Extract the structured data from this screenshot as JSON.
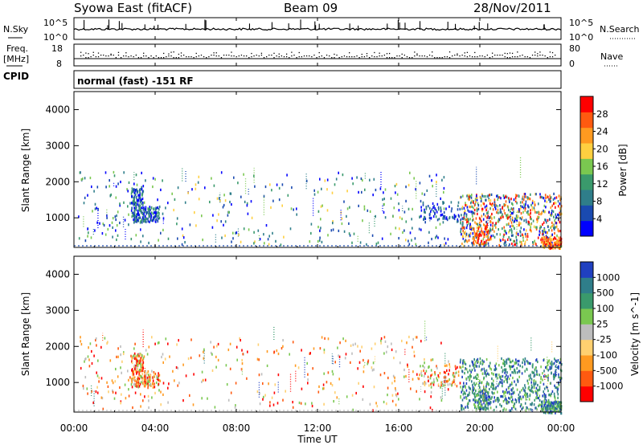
{
  "header": {
    "station": "Syowa East (fitACF)",
    "beam": "Beam 09",
    "date": "28/Nov/2011"
  },
  "side_labels": {
    "nsky": "N.Sky",
    "freq_line1": "Freq.",
    "freq_line2": "[MHz]",
    "cpid": "CPID",
    "nsearch": "N.Search",
    "nave": "Nave"
  },
  "cpid_text": "normal (fast) -151 RF",
  "colors": {
    "power_scale": [
      "#0000ff",
      "#1a4ab0",
      "#2f7e8a",
      "#3a9a6c",
      "#7ac850",
      "#ffd040",
      "#ff9a20",
      "#ff5a10",
      "#ff0000"
    ],
    "velocity_scale": [
      "#ff0000",
      "#ff5a10",
      "#ff9a20",
      "#ffd070",
      "#bdbdbd",
      "#7ac850",
      "#3a9a6c",
      "#2f7e8a",
      "#2040c0"
    ]
  },
  "chart_data": [
    {
      "type": "line",
      "name": "nsky-nsearch",
      "ylabel_left": "N.Sky",
      "ylabel_right": "N.Search",
      "left_ticks": [
        "10^5",
        "10^0"
      ],
      "right_ticks": [
        "10^5",
        "10^0"
      ]
    },
    {
      "type": "scatter",
      "name": "freq-nave",
      "ylabel_left": "Freq. [MHz]",
      "ylabel_right": "Nave",
      "left_ticks": [
        "18",
        "8"
      ],
      "right_ticks": [
        "80",
        "0"
      ],
      "ylim_left": [
        8,
        18
      ],
      "ylim_right": [
        0,
        80
      ]
    },
    {
      "type": "heatmap",
      "name": "power",
      "ylabel": "Slant Range [km]",
      "yticks": [
        "1000",
        "2000",
        "3000",
        "4000"
      ],
      "ylim": [
        180,
        4500
      ],
      "colorbar_label": "Power [dB]",
      "colorbar_ticks": [
        "28",
        "24",
        "20",
        "16",
        "12",
        "8",
        "4"
      ]
    },
    {
      "type": "heatmap",
      "name": "velocity",
      "ylabel": "Slant Range [km]",
      "yticks": [
        "1000",
        "2000",
        "3000",
        "4000"
      ],
      "ylim": [
        180,
        4500
      ],
      "colorbar_label": "Velocity [m s^-1]",
      "colorbar_ticks": [
        "1000",
        "500",
        "100",
        "25",
        "-25",
        "-100",
        "-500",
        "-1000"
      ]
    }
  ],
  "xaxis": {
    "xlabel": "Time UT",
    "ticks": [
      "00:00",
      "04:00",
      "08:00",
      "12:00",
      "16:00",
      "20:00",
      "00:00"
    ],
    "xlim_hours": [
      0,
      24
    ]
  }
}
